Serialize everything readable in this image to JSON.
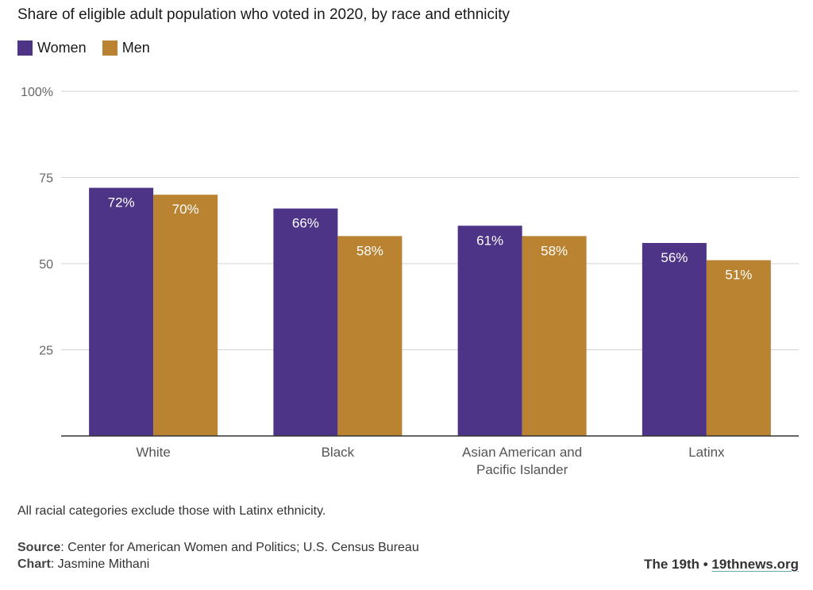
{
  "chart_data": {
    "type": "bar",
    "title": "Share of eligible adult population who voted in 2020, by race and ethnicity",
    "categories": [
      "White",
      "Black",
      "Asian American and\nPacific Islander",
      "Latinx"
    ],
    "series": [
      {
        "name": "Women",
        "color": "#4d3486",
        "values": [
          72,
          66,
          61,
          56
        ],
        "labels": [
          "72%",
          "66%",
          "61%",
          "56%"
        ]
      },
      {
        "name": "Men",
        "color": "#b98331",
        "values": [
          70,
          58,
          58,
          51
        ],
        "labels": [
          "70%",
          "58%",
          "58%",
          "51%"
        ]
      }
    ],
    "ylim": [
      0,
      100
    ],
    "yticks": [
      25,
      50,
      75,
      100
    ],
    "ytick_labels": [
      "25",
      "50",
      "75",
      "100%"
    ],
    "grid": true,
    "legend_position": "top-left"
  },
  "footer": {
    "note": "All racial categories exclude those with Latinx ethnicity.",
    "source_label": "Source",
    "source_text": ": Center for American Women and Politics; U.S. Census Bureau",
    "chart_label": "Chart",
    "chart_text": ": Jasmine Mithani",
    "brand": "The 19th",
    "separator": " • ",
    "site": "19thnews.org"
  }
}
